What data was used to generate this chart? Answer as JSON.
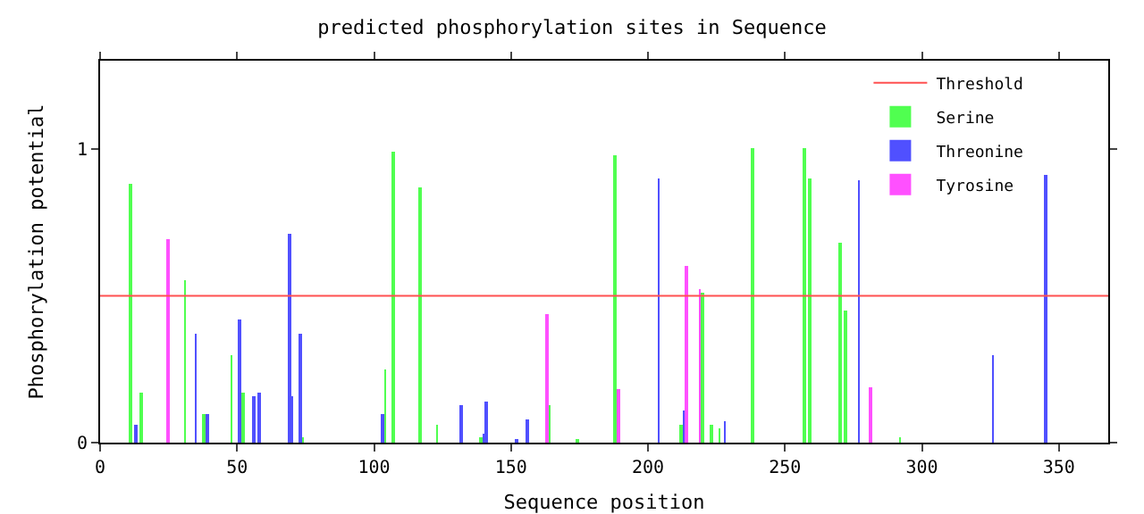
{
  "chart_data": {
    "type": "bar",
    "title": "predicted phosphorylation sites in Sequence",
    "xlabel": "Sequence position",
    "ylabel": "Phosphorylation potential",
    "xlim": [
      0,
      368
    ],
    "xticks": [
      0,
      50,
      100,
      150,
      200,
      250,
      300,
      350
    ],
    "ylim": [
      0,
      1.3
    ],
    "yticks": [
      0,
      1
    ],
    "grid": false,
    "legend": "top right",
    "ref_lines": [
      {
        "axis": "y",
        "value": 0.5,
        "label": "Threshold",
        "color": "#ff5050"
      }
    ],
    "series": [
      {
        "name": "Serine",
        "color": "#50ff50",
        "x": [
          11,
          15,
          31,
          38,
          48,
          52,
          74,
          104,
          107,
          117,
          123,
          139,
          164,
          174,
          188,
          212,
          220,
          223,
          226,
          238,
          257,
          259,
          270,
          272,
          292
        ],
        "values": [
          0.88,
          0.17,
          0.55,
          0.1,
          0.3,
          0.17,
          0.02,
          0.25,
          0.99,
          0.87,
          0.06,
          0.02,
          0.13,
          0.01,
          0.98,
          0.06,
          0.51,
          0.06,
          0.05,
          1.0,
          1.0,
          0.9,
          0.68,
          0.45,
          0.02
        ]
      },
      {
        "name": "Threonine",
        "color": "#5050ff",
        "x": [
          13,
          35,
          39,
          51,
          56,
          58,
          69,
          70,
          73,
          103,
          132,
          140,
          141,
          152,
          156,
          204,
          213,
          228,
          277,
          326,
          345
        ],
        "values": [
          0.06,
          0.37,
          0.1,
          0.42,
          0.16,
          0.17,
          0.71,
          0.16,
          0.37,
          0.1,
          0.13,
          0.03,
          0.14,
          0.01,
          0.08,
          0.9,
          0.11,
          0.07,
          0.89,
          0.3,
          0.91
        ]
      },
      {
        "name": "Tyrosine",
        "color": "#ff50ff",
        "x": [
          25,
          163,
          189,
          214,
          219,
          281
        ],
        "values": [
          0.69,
          0.44,
          0.18,
          0.6,
          0.52,
          0.19
        ]
      }
    ]
  }
}
